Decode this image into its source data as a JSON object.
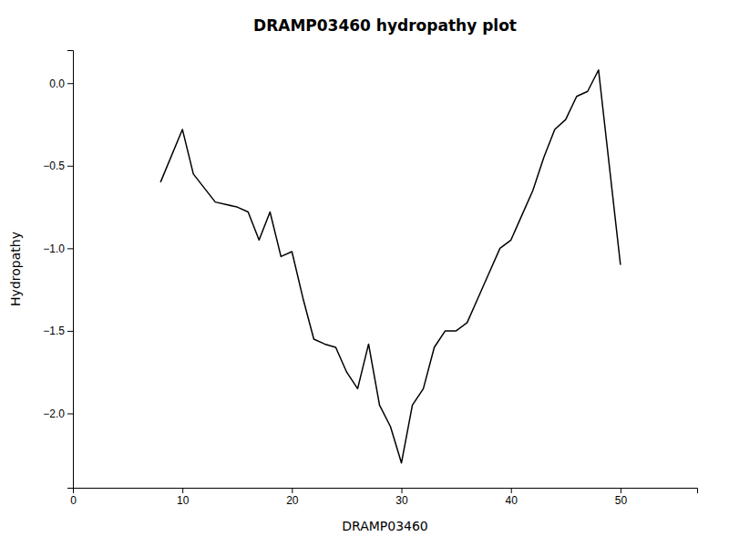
{
  "chart_data": {
    "type": "line",
    "title": "DRAMP03460 hydropathy plot",
    "xlabel": "DRAMP03460",
    "ylabel": "Hydropathy",
    "x": [
      8,
      10,
      11,
      13,
      15,
      16,
      17,
      18,
      19,
      20,
      21,
      22,
      23,
      24,
      25,
      26,
      27,
      28,
      29,
      30,
      31,
      32,
      33,
      34,
      35,
      36,
      37,
      38,
      39,
      40,
      41,
      42,
      43,
      44,
      45,
      46,
      47,
      48,
      50
    ],
    "values": [
      -0.6,
      -0.28,
      -0.55,
      -0.72,
      -0.75,
      -0.78,
      -0.95,
      -0.78,
      -1.05,
      -1.02,
      -1.3,
      -1.55,
      -1.58,
      -1.6,
      -1.75,
      -1.85,
      -1.58,
      -1.95,
      -2.08,
      -2.3,
      -1.95,
      -1.85,
      -1.6,
      -1.5,
      -1.5,
      -1.45,
      -1.3,
      -1.15,
      -1.0,
      -0.95,
      -0.8,
      -0.65,
      -0.45,
      -0.28,
      -0.22,
      -0.08,
      -0.05,
      0.08,
      -1.1
    ],
    "color": "#000000",
    "xlim": [
      0,
      57
    ],
    "ylim": [
      -2.45,
      0.2
    ],
    "xticks": [
      0,
      10,
      20,
      30,
      40,
      50
    ],
    "yticks": [
      {
        "value": 0.0,
        "label": "0.0"
      },
      {
        "value": -0.5,
        "label": "−0.5"
      },
      {
        "value": -1.0,
        "label": "−1.0"
      },
      {
        "value": -1.5,
        "label": "−1.5"
      },
      {
        "value": -2.0,
        "label": "−2.0"
      }
    ]
  }
}
